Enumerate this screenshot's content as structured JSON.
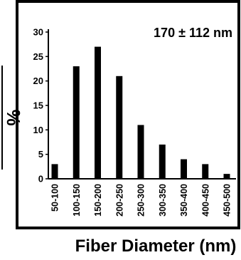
{
  "chart_data": {
    "type": "bar",
    "categories": [
      "50-100",
      "100-150",
      "150-200",
      "200-250",
      "250-300",
      "300-350",
      "350-400",
      "400-450",
      "450-500"
    ],
    "values": [
      3,
      23,
      27,
      21,
      11,
      7,
      4,
      3,
      1
    ],
    "ylim": [
      0,
      30
    ],
    "yticks": [
      0,
      5,
      10,
      15,
      20,
      25,
      30
    ],
    "xlabel": "Fiber Diameter (nm)",
    "ylabel": "%",
    "annotation": "170 ± 112 nm",
    "grid": false,
    "bar_color": "#000000"
  }
}
